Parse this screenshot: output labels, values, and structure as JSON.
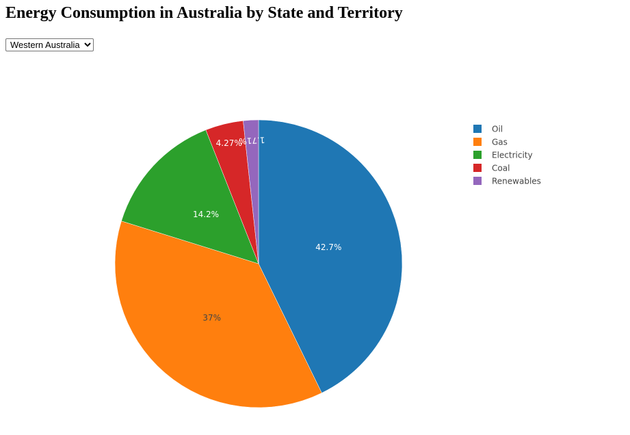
{
  "page": {
    "title": "Energy Consumption in Australia by State and Territory"
  },
  "selector": {
    "selected": "Western Australia",
    "options": [
      "Western Australia"
    ]
  },
  "chart_data": {
    "type": "pie",
    "categories": [
      "Oil",
      "Gas",
      "Electricity",
      "Coal",
      "Renewables"
    ],
    "values": [
      42.7,
      37,
      14.2,
      4.27,
      1.71
    ],
    "labels": [
      "42.7%",
      "37%",
      "14.2%",
      "4.27%",
      "1.71%"
    ],
    "colors": [
      "#1f77b4",
      "#ff7f0e",
      "#2ca02c",
      "#d62728",
      "#9467bd"
    ],
    "label_colors": [
      "#ffffff",
      "#444444",
      "#ffffff",
      "#ffffff",
      "#ffffff"
    ],
    "direction": "clockwise",
    "start": "top",
    "legend_position": "right"
  }
}
